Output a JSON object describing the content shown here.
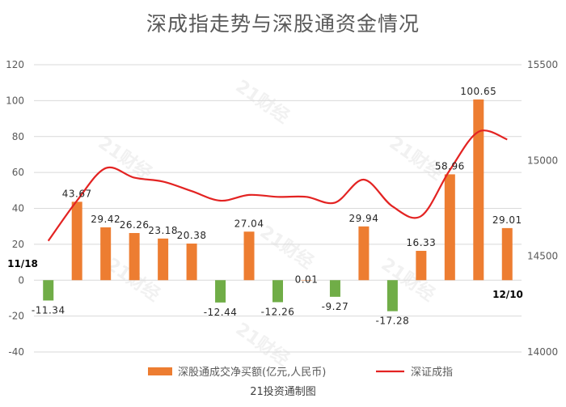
{
  "chart_data": {
    "type": "bar+line",
    "title": "深成指走势与深股通资金情况",
    "source": "21投资通制图",
    "watermark": "21财经",
    "left_axis": {
      "min": -40,
      "max": 120,
      "ticks": [
        "120",
        "100",
        "80",
        "60",
        "40",
        "20",
        "0",
        "-20",
        "-40"
      ]
    },
    "right_axis": {
      "min": 14000,
      "max": 15500,
      "ticks": [
        "15500",
        "15000",
        "14500",
        "14000"
      ]
    },
    "series": [
      {
        "name": "深股通成交净买额(亿元,人民币)",
        "type": "bar",
        "axis": "left",
        "values": [
          -11.34,
          43.67,
          29.42,
          26.26,
          23.18,
          20.38,
          -12.44,
          27.04,
          -12.26,
          0.01,
          -9.27,
          29.94,
          -17.28,
          16.33,
          58.96,
          100.65,
          29.01
        ],
        "labels": [
          "-11.34",
          "43.67",
          "29.42",
          "26.26",
          "23.18",
          "20.38",
          "-12.44",
          "27.04",
          "-12.26",
          "0.01",
          "-9.27",
          "29.94",
          "-17.28",
          "16.33",
          "58.96",
          "100.65",
          "29.01"
        ],
        "color_positive": "#ED7D31",
        "color_negative": "#70AD47"
      },
      {
        "name": "深证成指",
        "type": "line",
        "axis": "right",
        "values": [
          14580,
          14790,
          14960,
          14910,
          14890,
          14840,
          14790,
          14820,
          14810,
          14810,
          14780,
          14900,
          14760,
          14710,
          14950,
          15150,
          15110
        ],
        "color": "#E32322"
      }
    ],
    "annotations": {
      "start_date": "11/18",
      "end_date": "12/10"
    }
  }
}
